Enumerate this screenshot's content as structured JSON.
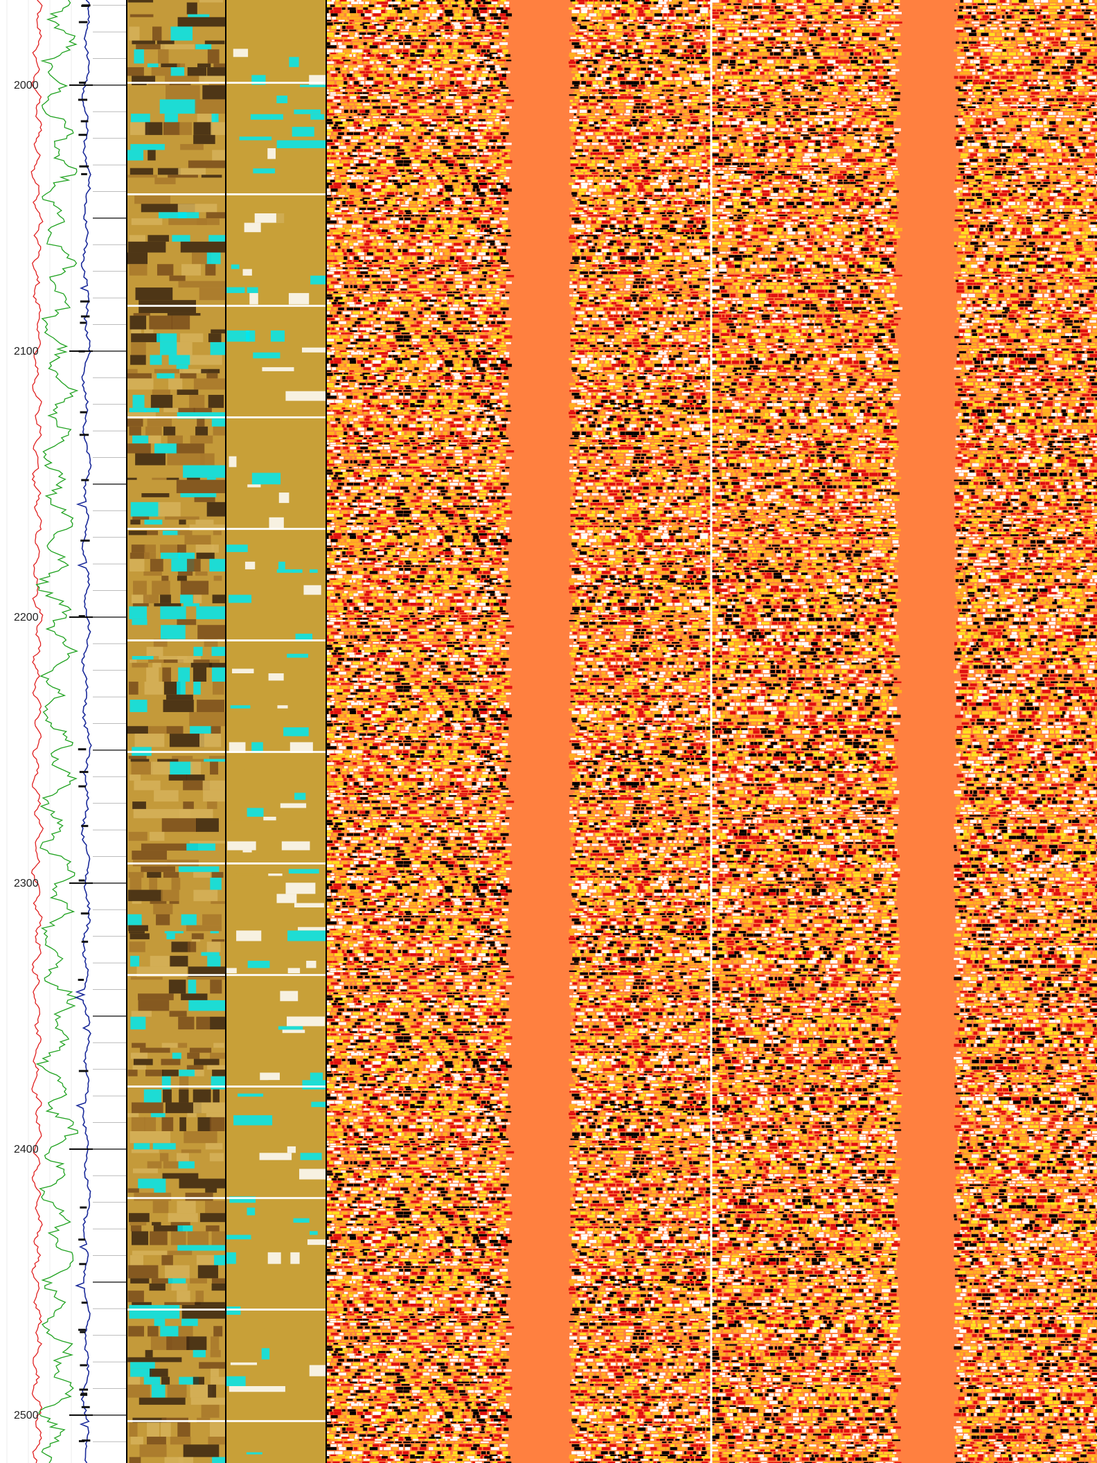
{
  "chart_data": {
    "type": "line",
    "title": "",
    "xlabel": "",
    "ylabel": "",
    "depth_range": [
      1968,
      2518
    ],
    "depth_ticks": [
      2000,
      2100,
      2200,
      2300,
      2400,
      2500
    ],
    "depth_tick_labels": [
      "2000",
      "2100",
      "2200",
      "2300",
      "2400",
      "2500"
    ],
    "tracks": [
      {
        "kind": "curves",
        "series": [
          {
            "color": "#e02020",
            "x_range": [
              0,
              1
            ],
            "base": 0.4,
            "amplitude": 0.06
          },
          {
            "color": "#1fa21f",
            "x_range": [
              0,
              1
            ],
            "base": 0.62,
            "amplitude": 0.22
          },
          {
            "color": "#1a2a9a",
            "x_range": [
              0,
              1
            ],
            "base": 0.93,
            "amplitude": 0.05
          }
        ]
      },
      {
        "kind": "depth-scale"
      },
      {
        "kind": "image",
        "palette": [
          "#c49a3a",
          "#7a4e1c",
          "#a8782c",
          "#d6b25a",
          "#00e8f0",
          "#3a2410"
        ]
      },
      {
        "kind": "image",
        "palette": [
          "#c8a038",
          "#c8a038",
          "#c8a038",
          "#00e8f0",
          "#ffffff"
        ]
      },
      {
        "kind": "variable-density",
        "palette": [
          "#ff8040",
          "#ffe020",
          "#000000",
          "#ffffff",
          "#e01010",
          "#ff8040"
        ]
      },
      {
        "kind": "variable-density",
        "palette": [
          "#ff8040",
          "#ffe020",
          "#000000",
          "#ffffff",
          "#e01010",
          "#ff8040"
        ]
      }
    ],
    "grid": true,
    "legend": "none"
  }
}
